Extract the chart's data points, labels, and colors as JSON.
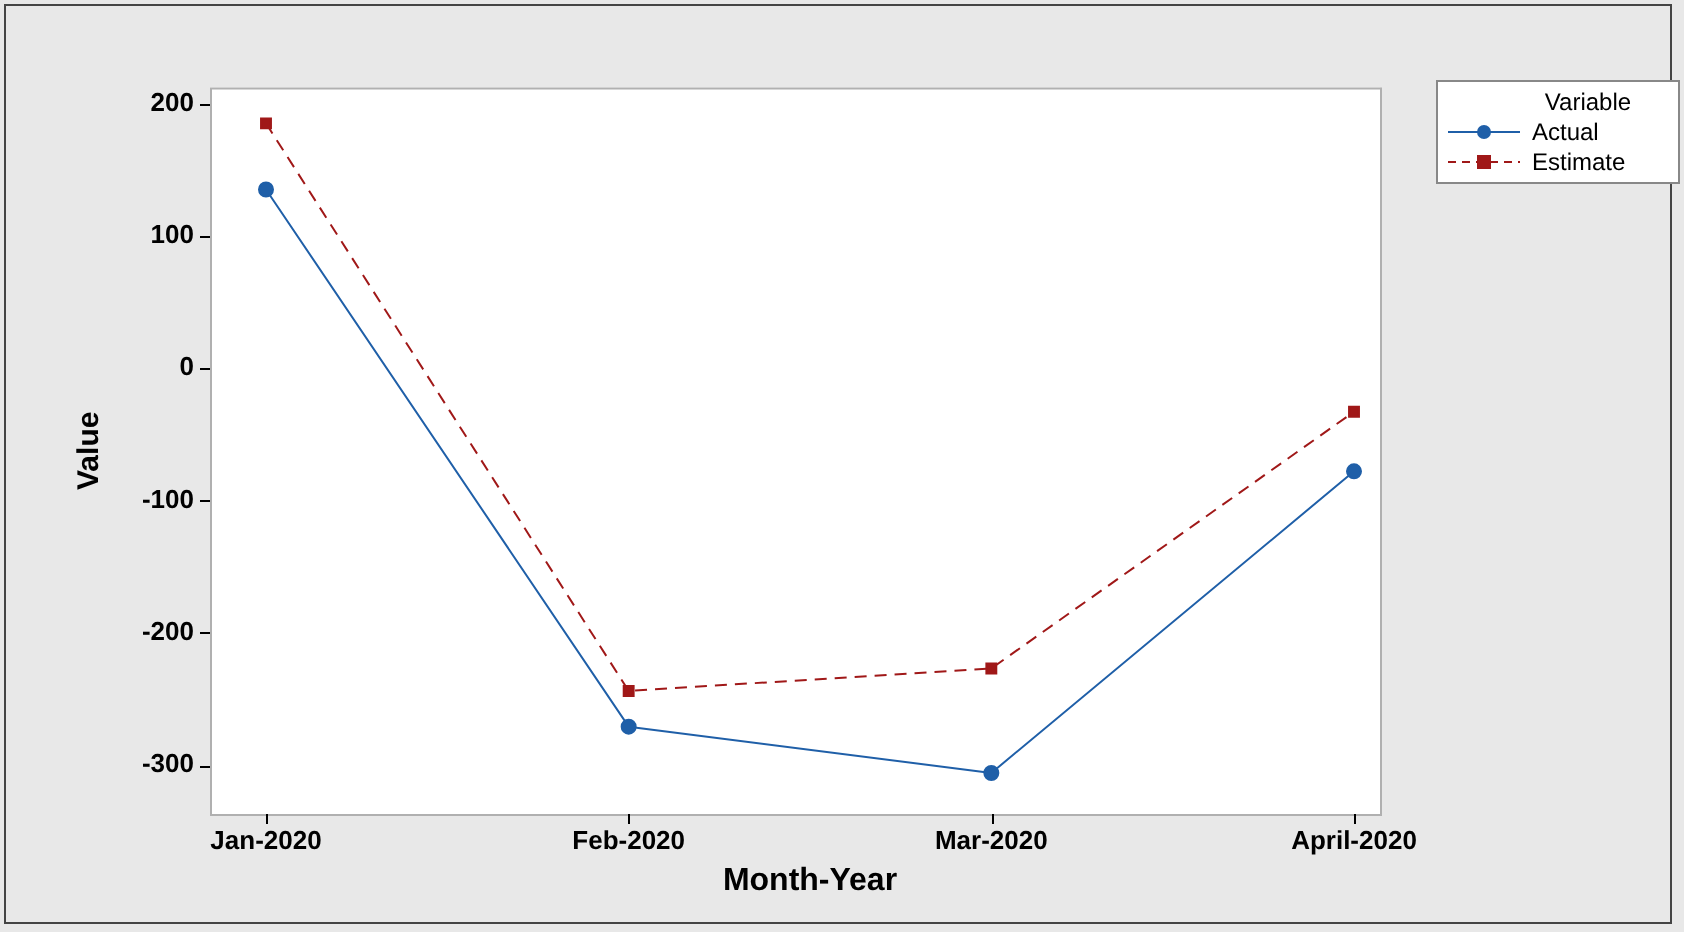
{
  "chart_data": {
    "type": "line",
    "xlabel": "Month-Year",
    "ylabel": "Value",
    "legend_title": "Variable",
    "legend": "top right",
    "grid": false,
    "categories": [
      "Jan-2020",
      "Feb-2020",
      "Mar-2020",
      "April-2020"
    ],
    "ylim": [
      -337,
      212
    ],
    "yticks": [
      -300,
      -200,
      -100,
      0,
      100,
      200
    ],
    "series": [
      {
        "name": "Actual",
        "color": "#1f5fa8",
        "marker": "circle",
        "line_style": "solid",
        "values": [
          135,
          -271,
          -306,
          -78
        ]
      },
      {
        "name": "Estimate",
        "color": "#a01818",
        "marker": "square",
        "line_style": "dashed",
        "values": [
          185,
          -244,
          -227,
          -33
        ]
      }
    ]
  }
}
